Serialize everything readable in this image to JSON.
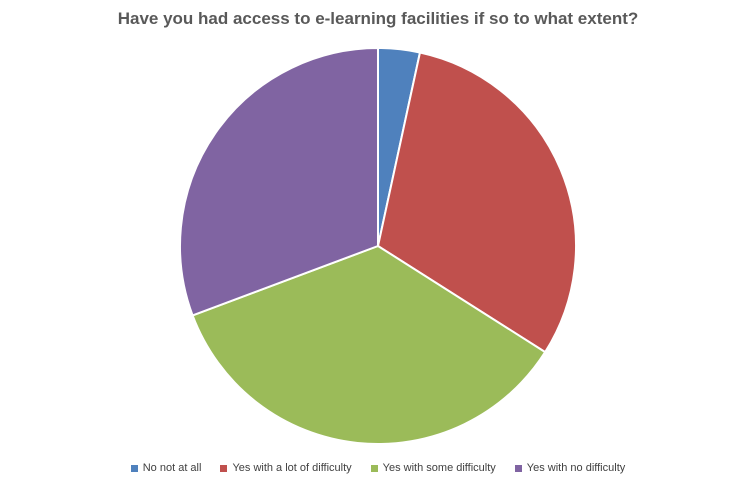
{
  "chart_data": {
    "type": "pie",
    "title": "Have you had access to e-learning facilities if so to what extent?",
    "categories": [
      "No not at all",
      "Yes with a lot of difficulty",
      "Yes with some difficulty",
      "Yes with no difficulty"
    ],
    "values": [
      3.4,
      30.6,
      35.3,
      30.7
    ],
    "value_unit": "percent of whole (estimated)",
    "colors": [
      "#4F81BD",
      "#C0504D",
      "#9BBB59",
      "#8064A2"
    ],
    "start_angle": "12 o'clock, clockwise",
    "legend_position": "bottom"
  }
}
